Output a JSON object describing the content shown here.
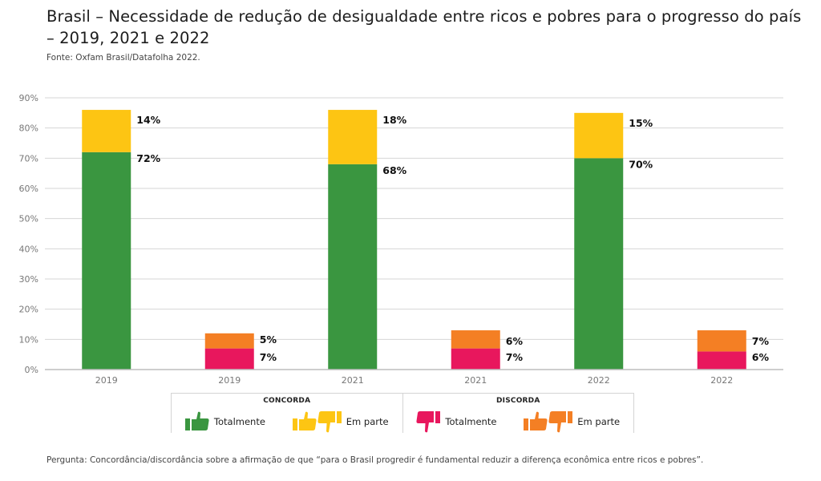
{
  "header": {
    "title": "Brasil – Necessidade de redução de desigualdade entre ricos e pobres para o progresso do país – 2019, 2021 e 2022",
    "source": "Fonte: Oxfam Brasil/Datafolha 2022."
  },
  "footer": {
    "question": "Pergunta: Concordância/discordância sobre a afirmação de que “para o Brasil progredir é fundamental reduzir a diferença econômica entre ricos e pobres”."
  },
  "colors": {
    "concorda_totalmente": "#3a9640",
    "concorda_em_parte": "#fdc513",
    "discorda_totalmente": "#e8175d",
    "discorda_em_parte": "#f47f24",
    "grid": "#d6d6d6",
    "axis": "#bdbdbd"
  },
  "legend": {
    "groups": [
      {
        "heading": "CONCORDA",
        "items": [
          {
            "label": "Totalmente",
            "icon": "thumbs-up-icon",
            "color_key": "concorda_totalmente"
          },
          {
            "label": "Em parte",
            "icon": "thumbs-up-down-icon",
            "color_key": "concorda_em_parte"
          }
        ]
      },
      {
        "heading": "DISCORDA",
        "items": [
          {
            "label": "Totalmente",
            "icon": "thumbs-down-icon",
            "color_key": "discorda_totalmente"
          },
          {
            "label": "Em parte",
            "icon": "thumbs-up-down-icon",
            "color_key": "discorda_em_parte"
          }
        ]
      }
    ]
  },
  "chart_data": {
    "type": "bar",
    "stacked": true,
    "title": "Brasil – Necessidade de redução de desigualdade entre ricos e pobres para o progresso do país – 2019, 2021 e 2022",
    "xlabel": "",
    "ylabel": "",
    "ylim": [
      0,
      90
    ],
    "yticks": [
      0,
      10,
      20,
      30,
      40,
      50,
      60,
      70,
      80,
      90
    ],
    "ytick_labels": [
      "0%",
      "10%",
      "20%",
      "30%",
      "40%",
      "50%",
      "60%",
      "70%",
      "80%",
      "90%"
    ],
    "grid": true,
    "legend_position": "bottom-center",
    "categories": [
      "2019",
      "2019",
      "2021",
      "2021",
      "2022",
      "2022"
    ],
    "bars": [
      {
        "category": "2019",
        "group": "Concorda",
        "segments": [
          {
            "series": "Concorda totalmente",
            "value": 72,
            "label": "72%",
            "color_key": "concorda_totalmente"
          },
          {
            "series": "Concorda em parte",
            "value": 14,
            "label": "14%",
            "color_key": "concorda_em_parte"
          }
        ]
      },
      {
        "category": "2019",
        "group": "Discorda",
        "segments": [
          {
            "series": "Discorda totalmente",
            "value": 7,
            "label": "7%",
            "color_key": "discorda_totalmente"
          },
          {
            "series": "Discorda em parte",
            "value": 5,
            "label": "5%",
            "color_key": "discorda_em_parte"
          }
        ]
      },
      {
        "category": "2021",
        "group": "Concorda",
        "segments": [
          {
            "series": "Concorda totalmente",
            "value": 68,
            "label": "68%",
            "color_key": "concorda_totalmente"
          },
          {
            "series": "Concorda em parte",
            "value": 18,
            "label": "18%",
            "color_key": "concorda_em_parte"
          }
        ]
      },
      {
        "category": "2021",
        "group": "Discorda",
        "segments": [
          {
            "series": "Discorda totalmente",
            "value": 7,
            "label": "7%",
            "color_key": "discorda_totalmente"
          },
          {
            "series": "Discorda em parte",
            "value": 6,
            "label": "6%",
            "color_key": "discorda_em_parte"
          }
        ]
      },
      {
        "category": "2022",
        "group": "Concorda",
        "segments": [
          {
            "series": "Concorda totalmente",
            "value": 70,
            "label": "70%",
            "color_key": "concorda_totalmente"
          },
          {
            "series": "Concorda em parte",
            "value": 15,
            "label": "15%",
            "color_key": "concorda_em_parte"
          }
        ]
      },
      {
        "category": "2022",
        "group": "Discorda",
        "segments": [
          {
            "series": "Discorda totalmente",
            "value": 6,
            "label": "6%",
            "color_key": "discorda_totalmente"
          },
          {
            "series": "Discorda em parte",
            "value": 7,
            "label": "7%",
            "color_key": "discorda_em_parte"
          }
        ]
      }
    ],
    "series": [
      {
        "name": "Concorda totalmente",
        "values": [
          72,
          null,
          68,
          null,
          70,
          null
        ]
      },
      {
        "name": "Concorda em parte",
        "values": [
          14,
          null,
          18,
          null,
          15,
          null
        ]
      },
      {
        "name": "Discorda totalmente",
        "values": [
          null,
          7,
          null,
          7,
          null,
          6
        ]
      },
      {
        "name": "Discorda em parte",
        "values": [
          null,
          5,
          null,
          6,
          null,
          7
        ]
      }
    ]
  }
}
